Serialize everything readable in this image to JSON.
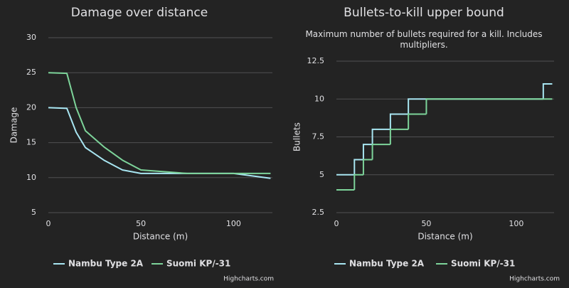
{
  "chart_data": [
    {
      "type": "line",
      "title": "Damage over distance",
      "x_label": "Distance (m)",
      "y_label": "Damage",
      "x": [
        0,
        10,
        15,
        20,
        30,
        40,
        50,
        75,
        100,
        120
      ],
      "series": [
        {
          "name": "Nambu Type 2A",
          "color": "#a8e6f2",
          "values": [
            20,
            19.9,
            16.5,
            14.3,
            12.5,
            11.1,
            10.6,
            10.6,
            10.6,
            9.9
          ]
        },
        {
          "name": "Suomi KP/-31",
          "color": "#7dd49a",
          "values": [
            25,
            24.9,
            20,
            16.7,
            14.4,
            12.5,
            11.1,
            10.6,
            10.6,
            10.6
          ]
        }
      ],
      "xlim": [
        0,
        121
      ],
      "xticks": [
        0,
        50,
        100
      ],
      "ylim": [
        5,
        30
      ],
      "yticks": [
        5,
        10,
        15,
        20,
        25,
        30
      ],
      "grid": true,
      "credits": "Highcharts.com"
    },
    {
      "type": "line",
      "step": true,
      "title": "Bullets-to-kill upper bound",
      "subtitle": "Maximum number of bullets required for a kill. Includes multipliers.",
      "x_label": "Distance (m)",
      "y_label": "Bullets",
      "x": [
        0,
        10,
        15,
        20,
        30,
        40,
        50,
        75,
        100,
        115,
        120
      ],
      "series": [
        {
          "name": "Nambu Type 2A",
          "color": "#a8e6f2",
          "values": [
            5,
            6,
            7,
            8,
            9,
            10,
            10,
            10,
            10,
            11,
            11
          ]
        },
        {
          "name": "Suomi KP/-31",
          "color": "#7dd49a",
          "values": [
            4,
            5,
            6,
            7,
            8,
            9,
            10,
            10,
            10,
            10,
            10
          ]
        }
      ],
      "xlim": [
        0,
        121
      ],
      "xticks": [
        0,
        50,
        100
      ],
      "ylim": [
        2.5,
        12.5
      ],
      "yticks": [
        2.5,
        5,
        7.5,
        10,
        12.5
      ],
      "grid": true,
      "credits": "Highcharts.com"
    }
  ]
}
